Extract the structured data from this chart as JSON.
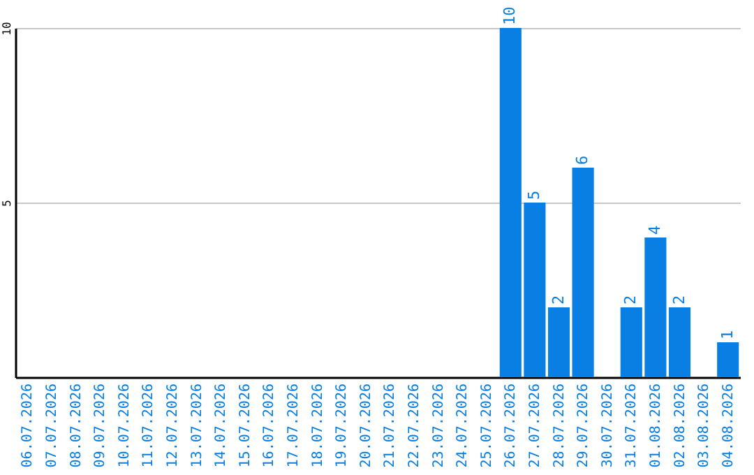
{
  "chart_data": {
    "type": "bar",
    "categories": [
      "06.07.2026",
      "07.07.2026",
      "08.07.2026",
      "09.07.2026",
      "10.07.2026",
      "11.07.2026",
      "12.07.2026",
      "13.07.2026",
      "14.07.2026",
      "15.07.2026",
      "16.07.2026",
      "17.07.2026",
      "18.07.2026",
      "19.07.2026",
      "20.07.2026",
      "21.07.2026",
      "22.07.2026",
      "23.07.2026",
      "24.07.2026",
      "25.07.2026",
      "26.07.2026",
      "27.07.2026",
      "28.07.2026",
      "29.07.2026",
      "30.07.2026",
      "31.07.2026",
      "01.08.2026",
      "02.08.2026",
      "03.08.2026",
      "04.08.2026"
    ],
    "values": [
      null,
      null,
      null,
      null,
      null,
      null,
      null,
      null,
      null,
      null,
      null,
      null,
      null,
      null,
      null,
      null,
      null,
      null,
      null,
      null,
      10,
      5,
      2,
      6,
      null,
      2,
      4,
      2,
      null,
      1
    ],
    "color": "#0a7fe3",
    "ylim": [
      0,
      10
    ],
    "yticks": [
      5,
      10
    ],
    "grid": "y",
    "data_labels": true
  }
}
